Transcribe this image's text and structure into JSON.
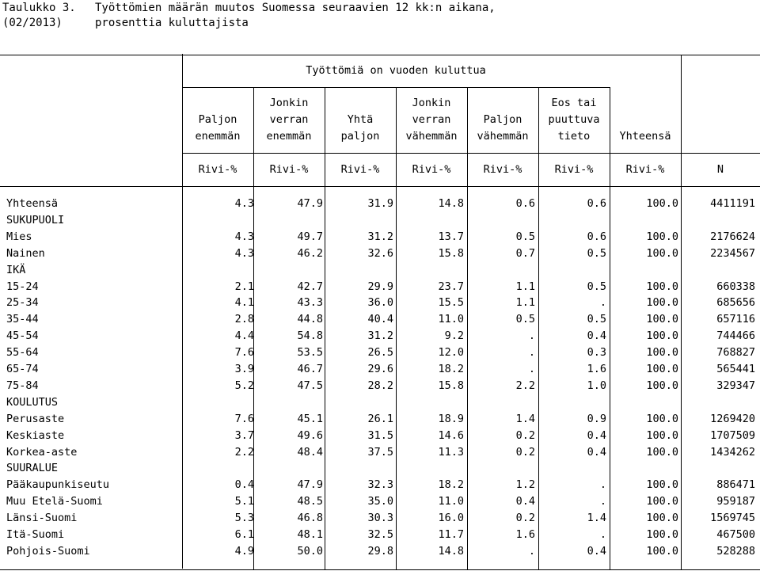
{
  "title": {
    "label": "Taulukko 3.",
    "line1": "Työttömien määrän muutos Suomessa seuraavien 12 kk:n aikana,",
    "date": "(02/2013)",
    "line2": "prosenttia kuluttajista"
  },
  "table": {
    "group_header": "Työttömiä on vuoden kuluttua",
    "columns": [
      [
        "Paljon",
        "enemmän"
      ],
      [
        "Jonkin",
        "verran",
        "enemmän"
      ],
      [
        "Yhtä",
        "paljon"
      ],
      [
        "Jonkin",
        "verran",
        "vähemmän"
      ],
      [
        "Paljon",
        "vähemmän"
      ],
      [
        "Eos tai",
        "puuttuva",
        "tieto"
      ],
      [
        "Yhteensä"
      ]
    ],
    "units": [
      "Rivi-%",
      "Rivi-%",
      "Rivi-%",
      "Rivi-%",
      "Rivi-%",
      "Rivi-%",
      "Rivi-%",
      "N"
    ],
    "rows": [
      {
        "label": "Yhteensä",
        "values": [
          "4.3",
          "47.9",
          "31.9",
          "14.8",
          "0.6",
          "0.6",
          "100.0",
          "4411191"
        ]
      },
      {
        "label": "SUKUPUOLI",
        "values": []
      },
      {
        "label": "Mies",
        "values": [
          "4.3",
          "49.7",
          "31.2",
          "13.7",
          "0.5",
          "0.6",
          "100.0",
          "2176624"
        ]
      },
      {
        "label": "Nainen",
        "values": [
          "4.3",
          "46.2",
          "32.6",
          "15.8",
          "0.7",
          "0.5",
          "100.0",
          "2234567"
        ]
      },
      {
        "label": "IKÄ",
        "values": []
      },
      {
        "label": "15-24",
        "values": [
          "2.1",
          "42.7",
          "29.9",
          "23.7",
          "1.1",
          "0.5",
          "100.0",
          "660338"
        ]
      },
      {
        "label": "25-34",
        "values": [
          "4.1",
          "43.3",
          "36.0",
          "15.5",
          "1.1",
          ".",
          "100.0",
          "685656"
        ]
      },
      {
        "label": "35-44",
        "values": [
          "2.8",
          "44.8",
          "40.4",
          "11.0",
          "0.5",
          "0.5",
          "100.0",
          "657116"
        ]
      },
      {
        "label": "45-54",
        "values": [
          "4.4",
          "54.8",
          "31.2",
          "9.2",
          ".",
          "0.4",
          "100.0",
          "744466"
        ]
      },
      {
        "label": "55-64",
        "values": [
          "7.6",
          "53.5",
          "26.5",
          "12.0",
          ".",
          "0.3",
          "100.0",
          "768827"
        ]
      },
      {
        "label": "65-74",
        "values": [
          "3.9",
          "46.7",
          "29.6",
          "18.2",
          ".",
          "1.6",
          "100.0",
          "565441"
        ]
      },
      {
        "label": "75-84",
        "values": [
          "5.2",
          "47.5",
          "28.2",
          "15.8",
          "2.2",
          "1.0",
          "100.0",
          "329347"
        ]
      },
      {
        "label": "KOULUTUS",
        "values": []
      },
      {
        "label": "Perusaste",
        "values": [
          "7.6",
          "45.1",
          "26.1",
          "18.9",
          "1.4",
          "0.9",
          "100.0",
          "1269420"
        ]
      },
      {
        "label": "Keskiaste",
        "values": [
          "3.7",
          "49.6",
          "31.5",
          "14.6",
          "0.2",
          "0.4",
          "100.0",
          "1707509"
        ]
      },
      {
        "label": "Korkea-aste",
        "values": [
          "2.2",
          "48.4",
          "37.5",
          "11.3",
          "0.2",
          "0.4",
          "100.0",
          "1434262"
        ]
      },
      {
        "label": "SUURALUE",
        "values": []
      },
      {
        "label": "Pääkaupunkiseutu",
        "values": [
          "0.4",
          "47.9",
          "32.3",
          "18.2",
          "1.2",
          ".",
          "100.0",
          "886471"
        ]
      },
      {
        "label": "Muu Etelä-Suomi",
        "values": [
          "5.1",
          "48.5",
          "35.0",
          "11.0",
          "0.4",
          ".",
          "100.0",
          "959187"
        ]
      },
      {
        "label": "Länsi-Suomi",
        "values": [
          "5.3",
          "46.8",
          "30.3",
          "16.0",
          "0.2",
          "1.4",
          "100.0",
          "1569745"
        ]
      },
      {
        "label": "Itä-Suomi",
        "values": [
          "6.1",
          "48.1",
          "32.5",
          "11.7",
          "1.6",
          ".",
          "100.0",
          "467500"
        ]
      },
      {
        "label": "Pohjois-Suomi",
        "values": [
          "4.9",
          "50.0",
          "29.8",
          "14.8",
          ".",
          "0.4",
          "100.0",
          "528288"
        ]
      }
    ]
  }
}
